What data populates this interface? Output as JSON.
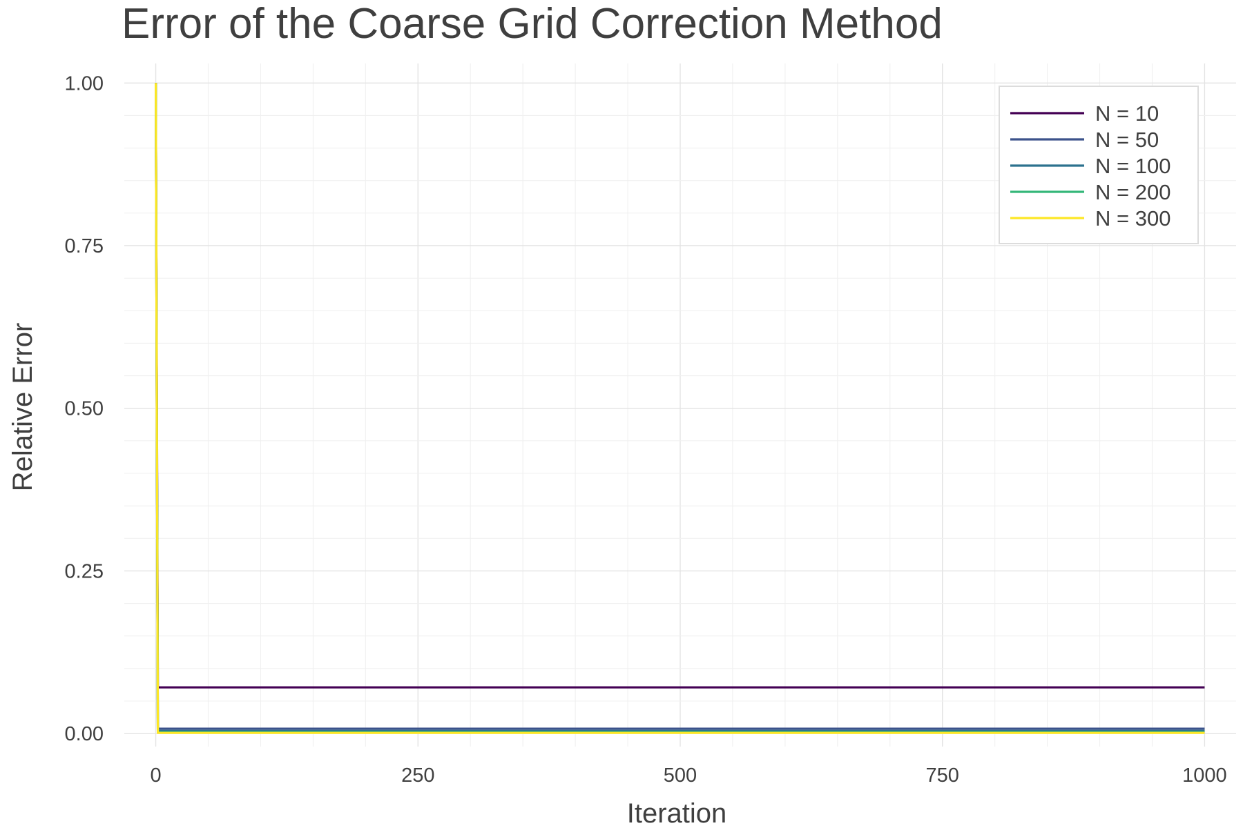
{
  "chart_data": {
    "type": "line",
    "title": "Error of the Coarse Grid Correction Method",
    "xlabel": "Iteration",
    "ylabel": "Relative Error",
    "xlim": [
      -30,
      1030
    ],
    "ylim": [
      -0.02,
      1.03
    ],
    "xticks": [
      0,
      250,
      500,
      750,
      1000
    ],
    "xtick_labels": [
      "0",
      "250",
      "500",
      "750",
      "1000"
    ],
    "yticks": [
      0,
      0.25,
      0.5,
      0.75,
      1.0
    ],
    "ytick_labels": [
      "0.00",
      "0.25",
      "0.50",
      "0.75",
      "1.00"
    ],
    "grid": true,
    "legend_position": "top-right",
    "series": [
      {
        "name": "N = 10",
        "color": "#440154",
        "x": [
          0,
          2,
          1000
        ],
        "y": [
          1.0,
          0.071,
          0.071
        ]
      },
      {
        "name": "N = 50",
        "color": "#3b528b",
        "x": [
          0,
          2,
          1000
        ],
        "y": [
          1.0,
          0.0075,
          0.0075
        ]
      },
      {
        "name": "N = 100",
        "color": "#2c728e",
        "x": [
          0,
          2,
          1000
        ],
        "y": [
          1.0,
          0.004,
          0.004
        ]
      },
      {
        "name": "N = 200",
        "color": "#35b779",
        "x": [
          0,
          2,
          1000
        ],
        "y": [
          1.0,
          0.002,
          0.002
        ]
      },
      {
        "name": "N = 300",
        "color": "#fde725",
        "x": [
          0,
          2,
          1000
        ],
        "y": [
          1.0,
          0.001,
          0.001
        ]
      }
    ]
  }
}
